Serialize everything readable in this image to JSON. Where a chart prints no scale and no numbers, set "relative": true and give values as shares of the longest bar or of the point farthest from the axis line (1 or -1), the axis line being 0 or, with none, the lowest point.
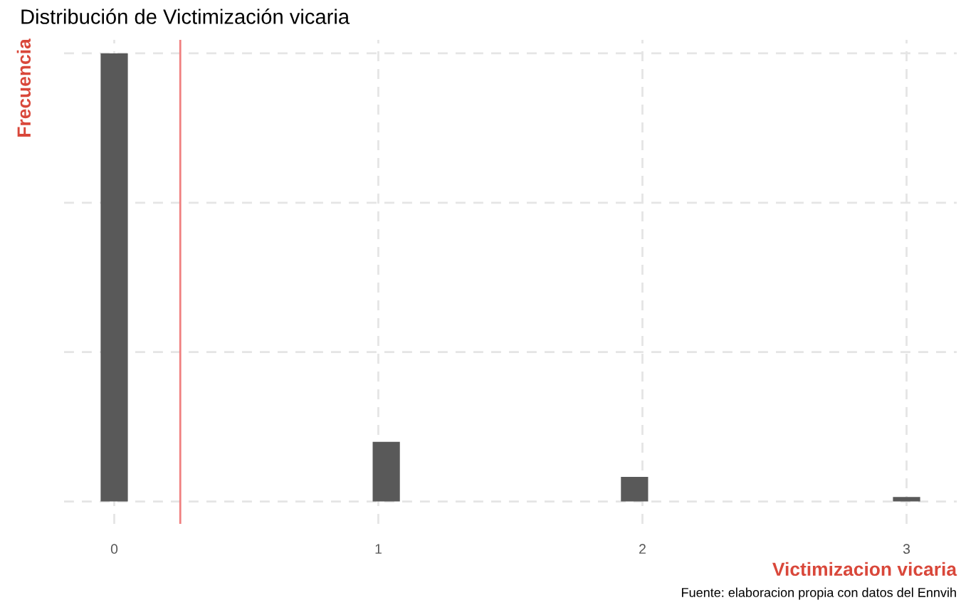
{
  "chart_data": {
    "type": "bar",
    "title": "Distribución de Victimización vicaria",
    "xlabel": "Victimizacion vicaria",
    "ylabel": "Frecuencia",
    "relative": true,
    "color": "#595959",
    "x": [
      0,
      1.03,
      1.97,
      3
    ],
    "values": [
      1,
      0.133,
      0.055,
      0.01
    ],
    "xlim": [
      -0.19,
      3.19
    ],
    "xticks": [
      0,
      1,
      2,
      3
    ],
    "grid": true,
    "ref_lines": [
      {
        "axis": "x",
        "value": 0.25,
        "color": "#f08080"
      }
    ],
    "annotations": [
      "Fuente: elaboracion propia con datos del Ennvih"
    ]
  }
}
